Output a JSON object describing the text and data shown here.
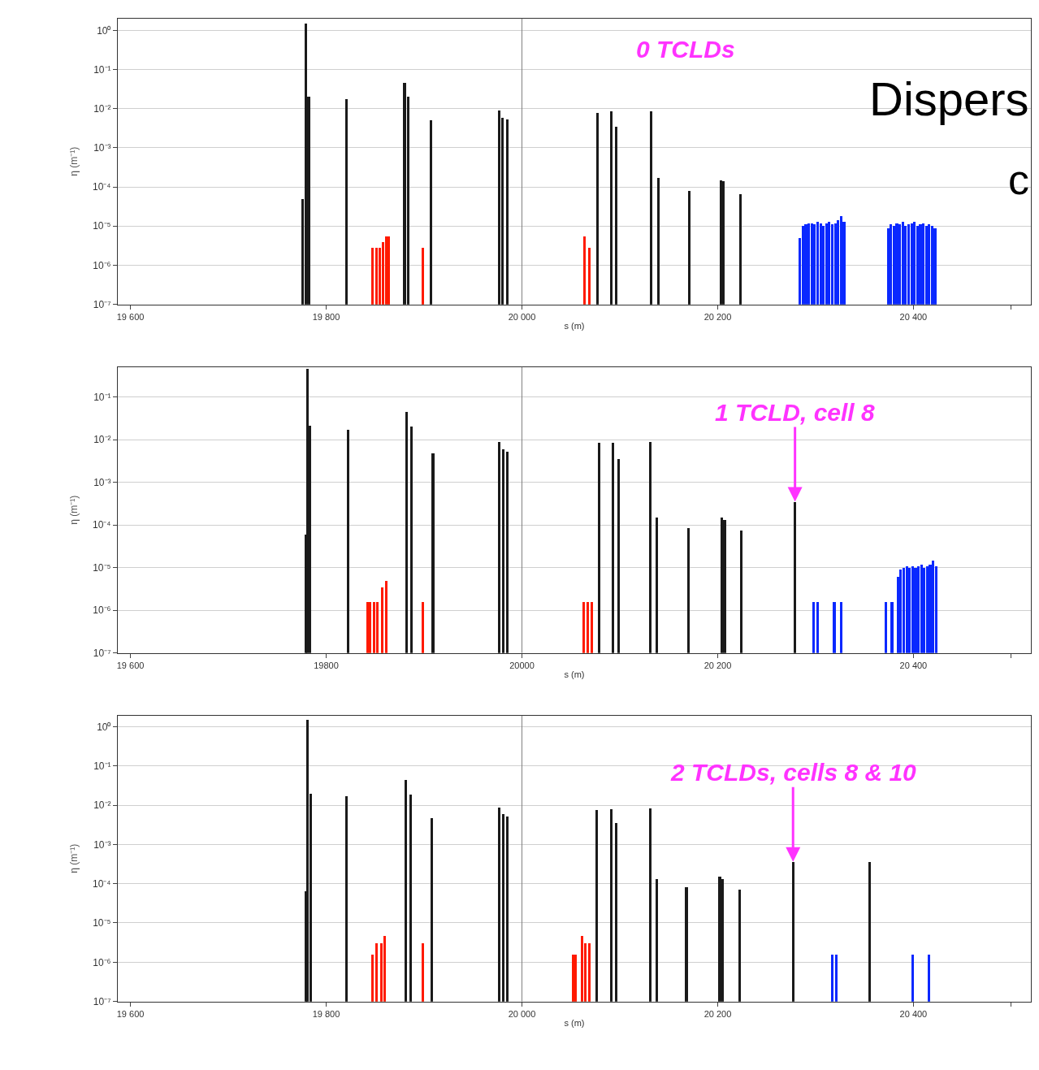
{
  "chart_data": [
    {
      "type": "bar",
      "log": true,
      "grid": "y",
      "xlabel": "s (m)",
      "ylabel": "η (m⁻¹)",
      "xlim": [
        19587,
        20520
      ],
      "xticks": [
        {
          "value": 19600,
          "label": "19 600"
        },
        {
          "value": 19800,
          "label": "19 800"
        },
        {
          "value": 20000,
          "label": "20 000"
        },
        {
          "value": 20200,
          "label": "20 200"
        },
        {
          "value": 20400,
          "label": "20 400"
        },
        {
          "value": 20500,
          "label": null
        }
      ],
      "ylim": [
        1e-07,
        2
      ],
      "yticks": [
        {
          "value": 1,
          "label": "10⁰"
        },
        {
          "value": 0.1,
          "label": "10⁻¹"
        },
        {
          "value": 0.01,
          "label": "10⁻²"
        },
        {
          "value": 0.001,
          "label": "10⁻³"
        },
        {
          "value": 0.0001,
          "label": "10⁻⁴"
        },
        {
          "value": 1e-05,
          "label": "10⁻⁵"
        },
        {
          "value": 1e-06,
          "label": "10⁻⁶"
        },
        {
          "value": 1e-07,
          "label": "10⁻⁷"
        }
      ],
      "ref_lines": [
        {
          "axis": "x",
          "value": 20000,
          "color": "#808080"
        }
      ],
      "annotations": [
        "0 TCLDs",
        "Dispers",
        "c"
      ],
      "series": [
        {
          "color": "#1a1a1a",
          "x": [
            19776,
            19779,
            19782,
            19821,
            19880,
            19884,
            19907,
            19977,
            19980,
            19985,
            20077,
            20091,
            20096,
            20132,
            20139,
            20171,
            20203,
            20206,
            20223
          ],
          "values": [
            5e-05,
            1.5,
            0.02,
            0.018,
            0.045,
            0.02,
            0.005,
            0.009,
            0.006,
            0.0054,
            0.008,
            0.0087,
            0.0035,
            0.0087,
            0.00017,
            8e-05,
            0.00015,
            0.00014,
            6.6e-05
          ]
        },
        {
          "color": "#ff1a00",
          "x": [
            19847,
            19851,
            19855,
            19858,
            19861,
            19864,
            19899,
            20064,
            20069
          ],
          "values": [
            2.8e-06,
            2.8e-06,
            2.8e-06,
            4e-06,
            5.6e-06,
            5.6e-06,
            2.8e-06,
            5.5e-06,
            2.8e-06
          ]
        },
        {
          "color": "#0a28ff",
          "x": [
            20284,
            20287,
            20290,
            20293,
            20296,
            20299,
            20302,
            20305,
            20308,
            20311,
            20314,
            20317,
            20320,
            20323,
            20326,
            20329,
            20374,
            20377,
            20380,
            20383,
            20386,
            20389,
            20392,
            20395,
            20398,
            20401,
            20404,
            20407,
            20410,
            20413,
            20416,
            20419,
            20422
          ],
          "values": [
            5e-06,
            1e-05,
            1.1e-05,
            1.2e-05,
            1.2e-05,
            1.1e-05,
            1.3e-05,
            1.2e-05,
            1e-05,
            1.2e-05,
            1.3e-05,
            1.1e-05,
            1.2e-05,
            1.4e-05,
            1.8e-05,
            1.3e-05,
            9e-06,
            1.1e-05,
            1e-05,
            1.2e-05,
            1.1e-05,
            1.3e-05,
            1e-05,
            1.1e-05,
            1.2e-05,
            1.3e-05,
            1e-05,
            1.1e-05,
            1.2e-05,
            1e-05,
            1.1e-05,
            1e-05,
            9e-06
          ]
        }
      ]
    },
    {
      "type": "bar",
      "log": true,
      "grid": "y",
      "xlabel": "s (m)",
      "ylabel": "η (m⁻¹)",
      "xlim": [
        19587,
        20520
      ],
      "xticks": [
        {
          "value": 19600,
          "label": "19 600"
        },
        {
          "value": 19800,
          "label": "19800"
        },
        {
          "value": 20000,
          "label": "20000"
        },
        {
          "value": 20200,
          "label": "20 200"
        },
        {
          "value": 20400,
          "label": "20 400"
        },
        {
          "value": 20500,
          "label": null
        }
      ],
      "ylim": [
        1e-07,
        0.5
      ],
      "yticks": [
        {
          "value": 0.1,
          "label": "10⁻¹"
        },
        {
          "value": 0.01,
          "label": "10⁻²"
        },
        {
          "value": 0.001,
          "label": "10⁻³"
        },
        {
          "value": 0.0001,
          "label": "10⁻⁴"
        },
        {
          "value": 1e-05,
          "label": "10⁻⁵"
        },
        {
          "value": 1e-06,
          "label": "10⁻⁶"
        },
        {
          "value": 1e-07,
          "label": "10⁻⁷"
        }
      ],
      "ref_lines": [
        {
          "axis": "x",
          "value": 20000,
          "color": "#808080"
        }
      ],
      "annotations": [
        {
          "text": "1 TCLD, cell 8",
          "x": 20279,
          "y": 0.00035
        }
      ],
      "series": [
        {
          "color": "#1a1a1a",
          "x": [
            19779,
            19781,
            19783,
            19822,
            19882,
            19887,
            19909,
            19977,
            19981,
            19985,
            20079,
            20093,
            20099,
            20131,
            20138,
            20170,
            20204,
            20207,
            20224,
            20279
          ],
          "values": [
            6e-05,
            0.45,
            0.021,
            0.017,
            0.044,
            0.02,
            0.0048,
            0.009,
            0.0059,
            0.0052,
            0.0085,
            0.0085,
            0.0035,
            0.0088,
            0.00015,
            8.4e-05,
            0.00015,
            0.00013,
            7.6e-05,
            0.00035
          ]
        },
        {
          "color": "#ff1a00",
          "x": [
            19842,
            19845,
            19849,
            19852,
            19857,
            19861,
            19899,
            20063,
            20067,
            20071
          ],
          "values": [
            1.55e-06,
            1.55e-06,
            1.55e-06,
            1.55e-06,
            3.5e-06,
            4.9e-06,
            1.55e-06,
            1.55e-06,
            1.55e-06,
            1.55e-06
          ]
        },
        {
          "color": "#0a28ff",
          "x": [
            20298,
            20302,
            20319,
            20326,
            20372,
            20378,
            20384,
            20387,
            20390,
            20393,
            20396,
            20399,
            20402,
            20405,
            20408,
            20411,
            20414,
            20417,
            20420,
            20423
          ],
          "values": [
            1.55e-06,
            1.55e-06,
            1.55e-06,
            1.55e-06,
            1.55e-06,
            1.55e-06,
            6e-06,
            9e-06,
            1e-05,
            1.1e-05,
            1e-05,
            1.1e-05,
            1e-05,
            1.1e-05,
            1.2e-05,
            1e-05,
            1.1e-05,
            1.2e-05,
            1.45e-05,
            1.1e-05
          ]
        }
      ]
    },
    {
      "type": "bar",
      "log": true,
      "grid": "y",
      "xlabel": "s (m)",
      "ylabel": "η (m⁻¹)",
      "xlim": [
        19587,
        20520
      ],
      "xticks": [
        {
          "value": 19600,
          "label": "19 600"
        },
        {
          "value": 19800,
          "label": "19 800"
        },
        {
          "value": 20000,
          "label": "20 000"
        },
        {
          "value": 20200,
          "label": "20 200"
        },
        {
          "value": 20400,
          "label": "20 400"
        },
        {
          "value": 20500,
          "label": null
        }
      ],
      "ylim": [
        1e-07,
        1.9
      ],
      "yticks": [
        {
          "value": 1,
          "label": "10⁰"
        },
        {
          "value": 0.1,
          "label": "10⁻¹"
        },
        {
          "value": 0.01,
          "label": "10⁻²"
        },
        {
          "value": 0.001,
          "label": "10⁻³"
        },
        {
          "value": 0.0001,
          "label": "10⁻⁴"
        },
        {
          "value": 1e-05,
          "label": "10⁻⁵"
        },
        {
          "value": 1e-06,
          "label": "10⁻⁶"
        },
        {
          "value": 1e-07,
          "label": "10⁻⁷"
        }
      ],
      "ref_lines": [
        {
          "axis": "x",
          "value": 20000,
          "color": "#808080"
        }
      ],
      "annotations": [
        {
          "text": "2 TCLDs, cells 8 & 10",
          "x": 20277,
          "y": 0.00036
        }
      ],
      "series": [
        {
          "color": "#1a1a1a",
          "x": [
            19779,
            19781,
            19784,
            19821,
            19881,
            19886,
            19908,
            19977,
            19981,
            19985,
            20076,
            20091,
            20096,
            20131,
            20138,
            20168,
            20202,
            20205,
            20222,
            20277,
            20355
          ],
          "values": [
            6.4e-05,
            1.5,
            0.02,
            0.017,
            0.045,
            0.019,
            0.0048,
            0.0087,
            0.0059,
            0.0052,
            0.0076,
            0.0079,
            0.0035,
            0.0083,
            0.00013,
            8.3e-05,
            0.00015,
            0.00013,
            7.2e-05,
            0.00036,
            0.00036
          ]
        },
        {
          "color": "#ff1a00",
          "x": [
            19847,
            19851,
            19856,
            19860,
            19899,
            20052,
            20055,
            20061,
            20065,
            20069
          ],
          "values": [
            1.6e-06,
            3.1e-06,
            3.1e-06,
            4.8e-06,
            3.1e-06,
            1.6e-06,
            1.6e-06,
            4.8e-06,
            3.1e-06,
            3.1e-06
          ]
        },
        {
          "color": "#0a28ff",
          "x": [
            20317,
            20321,
            20399,
            20416
          ],
          "values": [
            1.6e-06,
            1.6e-06,
            1.6e-06,
            1.6e-06
          ]
        }
      ]
    }
  ]
}
